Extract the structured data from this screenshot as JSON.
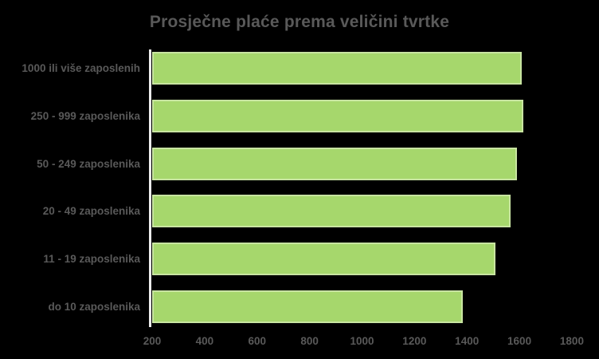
{
  "page": {
    "background": "#000000",
    "text_color": "#595959",
    "axis_line_color": "#ebebeb",
    "bar_fill": "#a6d76c",
    "bar_border": "#c8e4a1"
  },
  "chart_data": {
    "type": "bar",
    "orientation": "horizontal",
    "title": "Prosječne plaće prema veličini tvrtke",
    "categories": [
      "1000 ili više zaposlenih",
      "250 - 999 zaposlenika",
      "50 - 249 zaposlenika",
      "20 - 49 zaposlenika",
      "11 - 19 zaposlenika",
      "do 10 zaposlenika"
    ],
    "values": [
      1610,
      1615,
      1590,
      1565,
      1510,
      1385
    ],
    "x_ticks": [
      200,
      400,
      600,
      800,
      1000,
      1200,
      1400,
      1600,
      1800
    ],
    "xlim": [
      200,
      1870
    ],
    "xlabel": "",
    "ylabel": "",
    "grid": false,
    "legend": null
  }
}
